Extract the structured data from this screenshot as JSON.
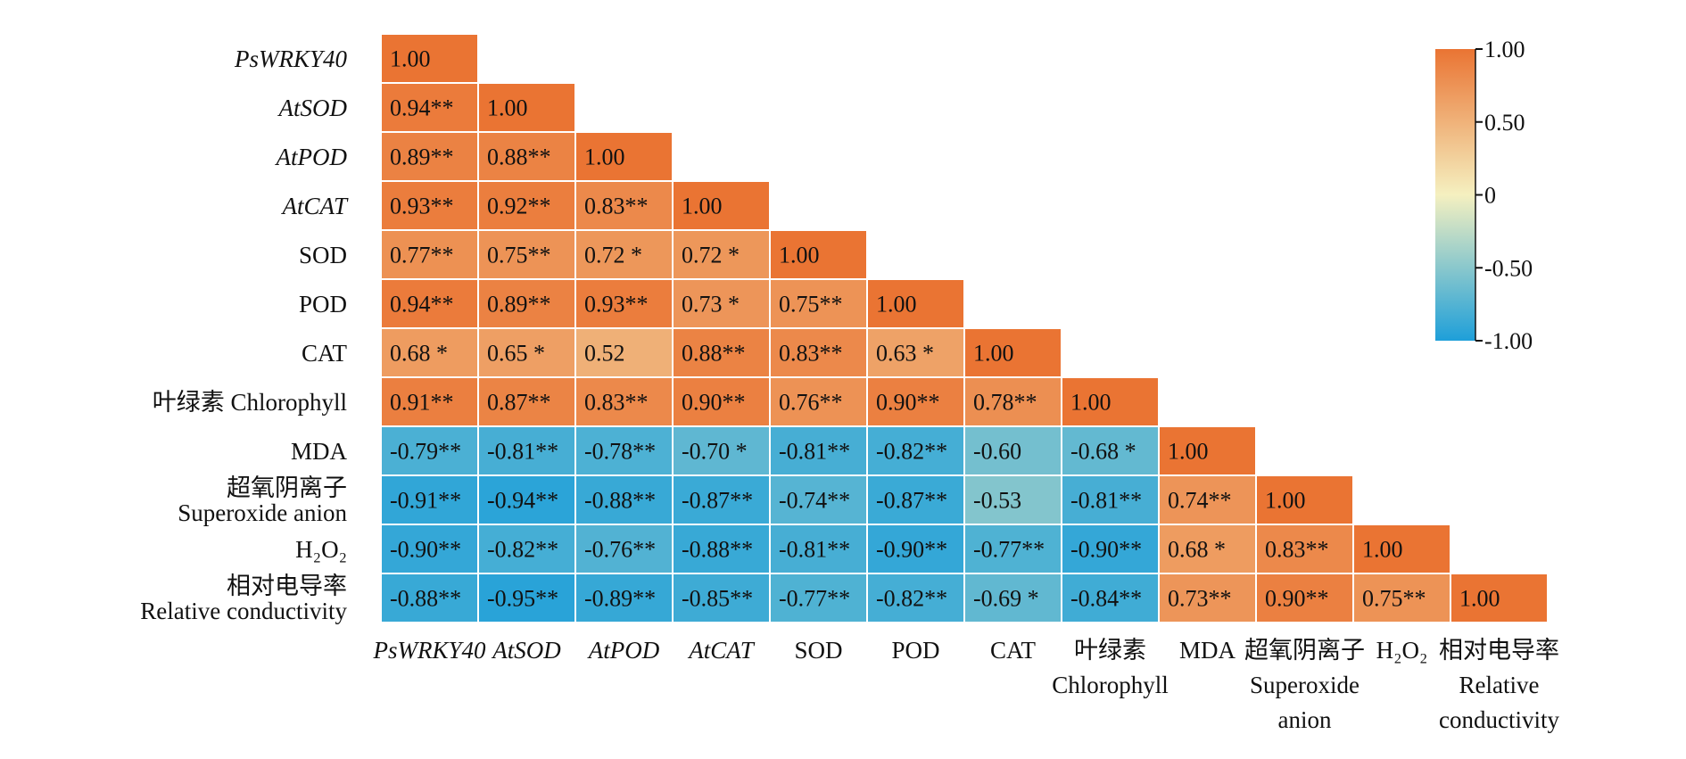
{
  "chart_data": {
    "type": "heatmap",
    "title": "",
    "labels": [
      {
        "lines": [
          "PsWRKY40"
        ],
        "italic": true
      },
      {
        "lines": [
          "AtSOD"
        ],
        "italic": true
      },
      {
        "lines": [
          "AtPOD"
        ],
        "italic": true
      },
      {
        "lines": [
          "AtCAT"
        ],
        "italic": true
      },
      {
        "lines": [
          "SOD"
        ],
        "italic": false
      },
      {
        "lines": [
          "POD"
        ],
        "italic": false
      },
      {
        "lines": [
          "CAT"
        ],
        "italic": false
      },
      {
        "lines": [
          "叶绿素 Chlorophyll"
        ],
        "italic": false
      },
      {
        "lines": [
          "MDA"
        ],
        "italic": false
      },
      {
        "lines": [
          "超氧阴离子",
          "Superoxide anion"
        ],
        "italic": false
      },
      {
        "lines": [
          "H₂O₂"
        ],
        "italic": false
      },
      {
        "lines": [
          "相对电导率",
          "Relative conductivity"
        ],
        "italic": false
      }
    ],
    "x_labels": [
      {
        "lines": [
          "PsWRKY40"
        ],
        "italic": true
      },
      {
        "lines": [
          "AtSOD"
        ],
        "italic": true
      },
      {
        "lines": [
          "AtPOD"
        ],
        "italic": true
      },
      {
        "lines": [
          "AtCAT"
        ],
        "italic": true
      },
      {
        "lines": [
          "SOD"
        ],
        "italic": false
      },
      {
        "lines": [
          "POD"
        ],
        "italic": false
      },
      {
        "lines": [
          "CAT"
        ],
        "italic": false
      },
      {
        "lines": [
          "叶绿素",
          "Chlorophyll"
        ],
        "italic": false
      },
      {
        "lines": [
          "MDA"
        ],
        "italic": false
      },
      {
        "lines": [
          "超氧阴离子",
          "Superoxide",
          "anion"
        ],
        "italic": false
      },
      {
        "lines": [
          "H₂O₂"
        ],
        "italic": false
      },
      {
        "lines": [
          "相对电导率",
          "Relative",
          "conductivity"
        ],
        "italic": false
      }
    ],
    "values": [
      [
        1.0
      ],
      [
        0.94,
        1.0
      ],
      [
        0.89,
        0.88,
        1.0
      ],
      [
        0.93,
        0.92,
        0.83,
        1.0
      ],
      [
        0.77,
        0.75,
        0.72,
        0.72,
        1.0
      ],
      [
        0.94,
        0.89,
        0.93,
        0.73,
        0.75,
        1.0
      ],
      [
        0.68,
        0.65,
        0.52,
        0.88,
        0.83,
        0.63,
        1.0
      ],
      [
        0.91,
        0.87,
        0.83,
        0.9,
        0.76,
        0.9,
        0.78,
        1.0
      ],
      [
        -0.79,
        -0.81,
        -0.78,
        -0.7,
        -0.81,
        -0.82,
        -0.6,
        -0.68,
        1.0
      ],
      [
        -0.91,
        -0.94,
        -0.88,
        -0.87,
        -0.74,
        -0.87,
        -0.53,
        -0.81,
        0.74,
        1.0
      ],
      [
        -0.9,
        -0.82,
        -0.76,
        -0.88,
        -0.81,
        -0.9,
        -0.77,
        -0.9,
        0.68,
        0.83,
        1.0
      ],
      [
        -0.88,
        -0.95,
        -0.89,
        -0.85,
        -0.77,
        -0.82,
        -0.69,
        -0.84,
        0.73,
        0.9,
        0.75,
        1.0
      ]
    ],
    "significance": [
      [
        ""
      ],
      [
        "**",
        ""
      ],
      [
        "**",
        "**",
        ""
      ],
      [
        "**",
        "**",
        "**",
        ""
      ],
      [
        "**",
        "**",
        "*",
        "*",
        ""
      ],
      [
        "**",
        "**",
        "**",
        "*",
        "**",
        ""
      ],
      [
        "*",
        "*",
        "",
        "**",
        "**",
        "*",
        ""
      ],
      [
        "**",
        "**",
        "**",
        "**",
        "**",
        "**",
        "**",
        ""
      ],
      [
        "**",
        "**",
        "**",
        "*",
        "**",
        "**",
        "",
        "*",
        ""
      ],
      [
        "**",
        "**",
        "**",
        "**",
        "**",
        "**",
        "",
        "**",
        "**",
        ""
      ],
      [
        "**",
        "**",
        "**",
        "**",
        "**",
        "**",
        "**",
        "**",
        "*",
        "**",
        ""
      ],
      [
        "**",
        "**",
        "**",
        "**",
        "**",
        "**",
        "*",
        "**",
        "**",
        "**",
        "**",
        ""
      ]
    ],
    "colorbar": {
      "range": [
        -1.0,
        1.0
      ],
      "ticks": [
        1.0,
        0.5,
        0,
        -0.5,
        -1.0
      ],
      "tick_labels": [
        "1.00",
        "0.50",
        "0",
        "-0.50",
        "-1.00"
      ],
      "colors": {
        "high": "#EA7433",
        "mid": "#F5F0C0",
        "low": "#1E9FD9"
      }
    }
  }
}
